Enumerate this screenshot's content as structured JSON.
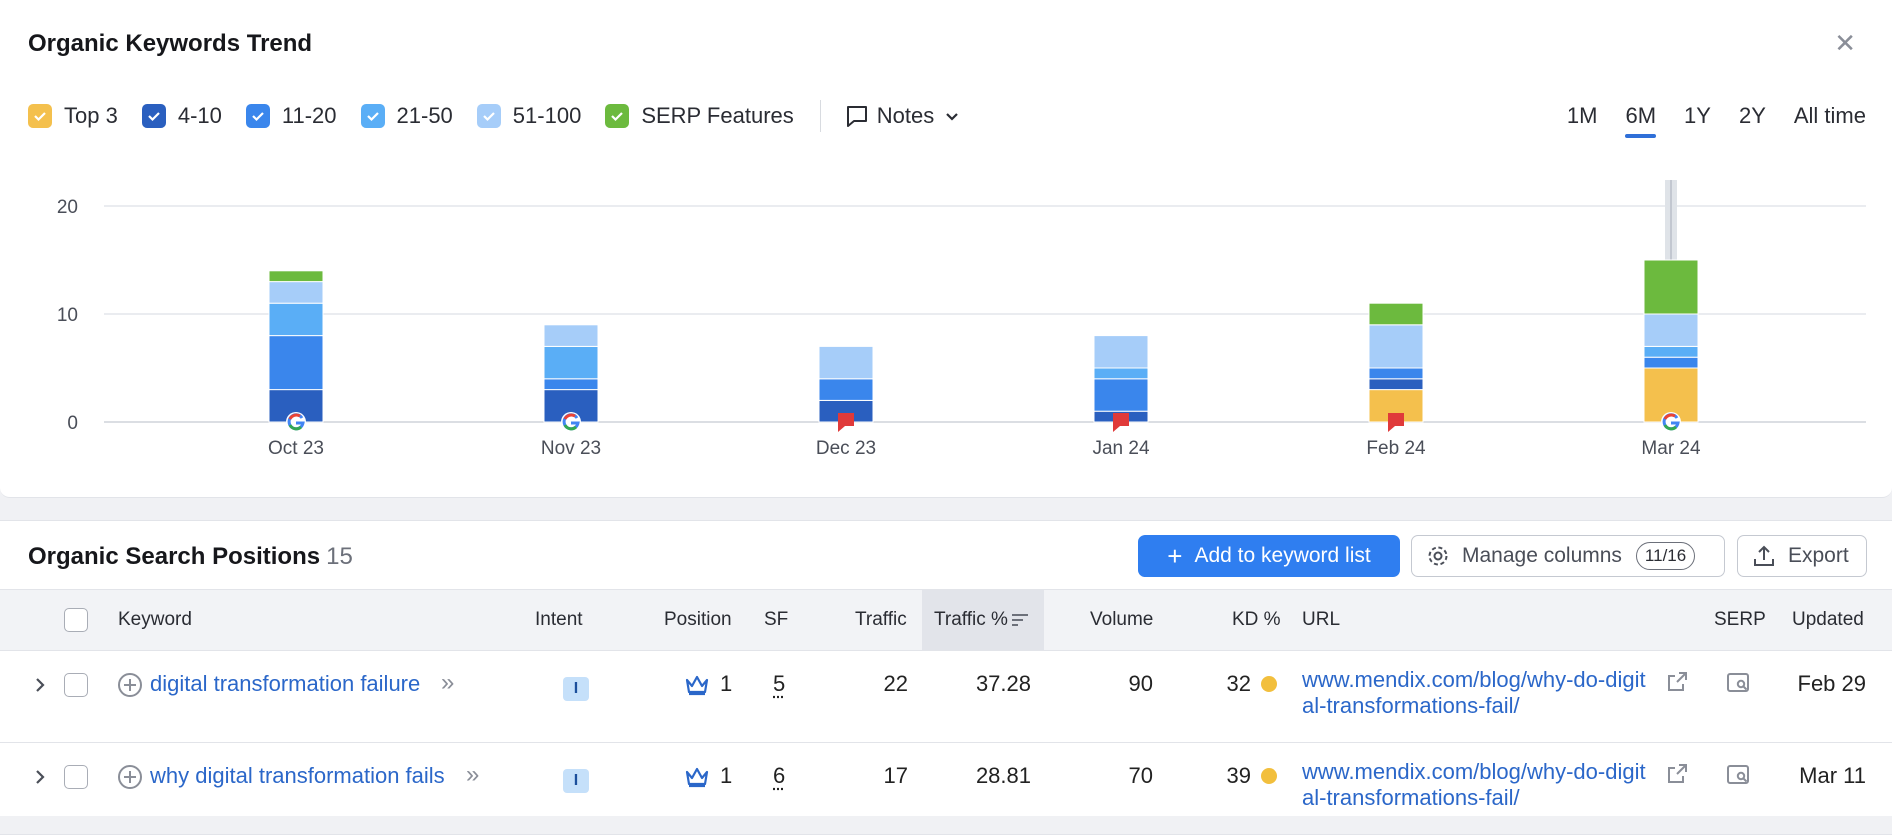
{
  "trend": {
    "title": "Organic Keywords Trend",
    "legend": [
      {
        "label": "Top 3",
        "color": "#f4c04d"
      },
      {
        "label": "4-10",
        "color": "#2a5fbf"
      },
      {
        "label": "11-20",
        "color": "#3a86ec"
      },
      {
        "label": "21-50",
        "color": "#5aaef6"
      },
      {
        "label": "51-100",
        "color": "#a6cdf9"
      },
      {
        "label": "SERP Features",
        "color": "#6cba3e"
      }
    ],
    "notes_label": "Notes",
    "ranges": [
      "1M",
      "6M",
      "1Y",
      "2Y",
      "All time"
    ],
    "active_range": "6M"
  },
  "chart_data": {
    "type": "bar",
    "stacked": true,
    "categories": [
      "Oct 23",
      "Nov 23",
      "Dec 23",
      "Jan 24",
      "Feb 24",
      "Mar 24"
    ],
    "series": [
      {
        "name": "Top 3",
        "values": [
          0,
          0,
          0,
          0,
          3,
          5
        ]
      },
      {
        "name": "4-10",
        "values": [
          3,
          3,
          2,
          1,
          1,
          0
        ]
      },
      {
        "name": "11-20",
        "values": [
          5,
          1,
          2,
          3,
          1,
          1
        ]
      },
      {
        "name": "21-50",
        "values": [
          3,
          3,
          0,
          1,
          0,
          1
        ]
      },
      {
        "name": "51-100",
        "values": [
          2,
          2,
          3,
          3,
          4,
          3
        ]
      },
      {
        "name": "SERP Features",
        "values": [
          1,
          0,
          0,
          0,
          2,
          5
        ]
      }
    ],
    "yticks": [
      0,
      10,
      20
    ],
    "ylim": [
      0,
      22
    ],
    "markers": [
      "google",
      "google",
      "flag",
      "flag",
      "flag",
      "google"
    ],
    "highlighted_category": "Mar 24",
    "grid": true
  },
  "positions": {
    "title": "Organic Search Positions",
    "count": "15",
    "add_label": "Add to keyword list",
    "manage_label": "Manage columns",
    "manage_badge": "11/16",
    "export_label": "Export",
    "columns": {
      "keyword": "Keyword",
      "intent": "Intent",
      "position": "Position",
      "sf": "SF",
      "traffic": "Traffic",
      "traffic_pct": "Traffic %",
      "volume": "Volume",
      "kd": "KD %",
      "url": "URL",
      "serp": "SERP",
      "updated": "Updated"
    },
    "rows": [
      {
        "keyword": "digital transformation failure",
        "intent": "I",
        "position": "1",
        "sf": "5",
        "traffic": "22",
        "traffic_pct": "37.28",
        "volume": "90",
        "kd": "32",
        "url": "www.mendix.com/blog/why-do-digital-transformations-fail/",
        "updated": "Feb 29"
      },
      {
        "keyword": "why digital transformation fails",
        "intent": "I",
        "position": "1",
        "sf": "6",
        "traffic": "17",
        "traffic_pct": "28.81",
        "volume": "70",
        "kd": "39",
        "url": "www.mendix.com/blog/why-do-digital-transformations-fail/",
        "updated": "Mar 11"
      }
    ]
  }
}
